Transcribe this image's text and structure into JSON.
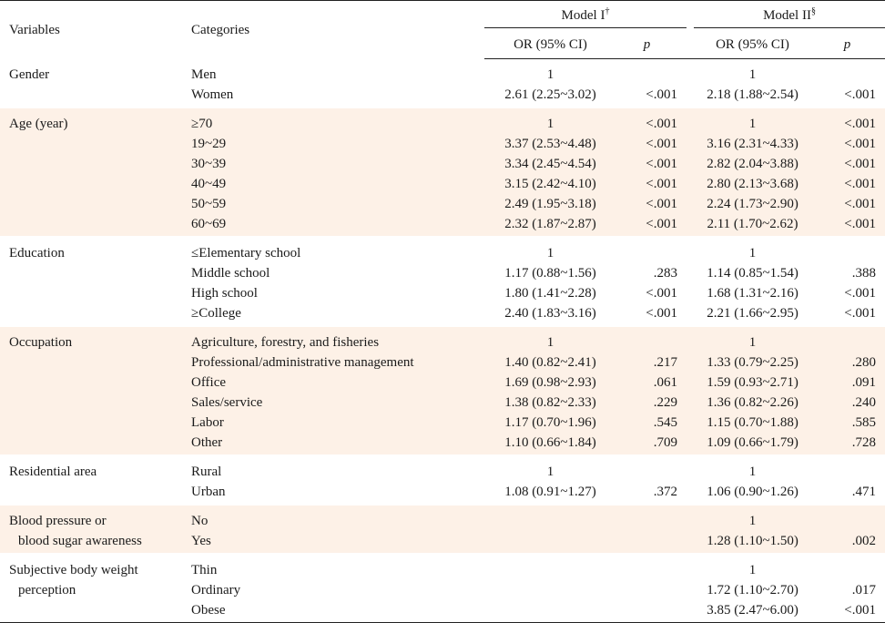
{
  "header": {
    "variables": "Variables",
    "categories": "Categories",
    "model1": "Model I",
    "model1_mark": "†",
    "model2": "Model II",
    "model2_mark": "§",
    "or_ci": "OR (95% CI)",
    "p": "p"
  },
  "groups": [
    {
      "variable_lines": [
        "Gender"
      ],
      "shaded": false,
      "rows": [
        {
          "category": "Men",
          "or1": "1",
          "p1": "",
          "or2": "1",
          "p2": ""
        },
        {
          "category": "Women",
          "or1": "2.61 (2.25~3.02)",
          "p1": "<.001",
          "or2": "2.18 (1.88~2.54)",
          "p2": "<.001"
        }
      ]
    },
    {
      "variable_lines": [
        "Age (year)"
      ],
      "shaded": true,
      "rows": [
        {
          "category": "≥70",
          "or1": "1",
          "p1": "<.001",
          "or2": "1",
          "p2": "<.001"
        },
        {
          "category": "19~29",
          "or1": "3.37 (2.53~4.48)",
          "p1": "<.001",
          "or2": "3.16 (2.31~4.33)",
          "p2": "<.001"
        },
        {
          "category": "30~39",
          "or1": "3.34 (2.45~4.54)",
          "p1": "<.001",
          "or2": "2.82 (2.04~3.88)",
          "p2": "<.001"
        },
        {
          "category": "40~49",
          "or1": "3.15 (2.42~4.10)",
          "p1": "<.001",
          "or2": "2.80 (2.13~3.68)",
          "p2": "<.001"
        },
        {
          "category": "50~59",
          "or1": "2.49 (1.95~3.18)",
          "p1": "<.001",
          "or2": "2.24 (1.73~2.90)",
          "p2": "<.001"
        },
        {
          "category": "60~69",
          "or1": "2.32 (1.87~2.87)",
          "p1": "<.001",
          "or2": "2.11 (1.70~2.62)",
          "p2": "<.001"
        }
      ]
    },
    {
      "variable_lines": [
        "Education"
      ],
      "shaded": false,
      "rows": [
        {
          "category": "≤Elementary school",
          "or1": "1",
          "p1": "",
          "or2": "1",
          "p2": ""
        },
        {
          "category": "Middle school",
          "or1": "1.17 (0.88~1.56)",
          "p1": ".283",
          "or2": "1.14 (0.85~1.54)",
          "p2": ".388"
        },
        {
          "category": "High school",
          "or1": "1.80 (1.41~2.28)",
          "p1": "<.001",
          "or2": "1.68 (1.31~2.16)",
          "p2": "<.001"
        },
        {
          "category": "≥College",
          "or1": "2.40 (1.83~3.16)",
          "p1": "<.001",
          "or2": "2.21 (1.66~2.95)",
          "p2": "<.001"
        }
      ]
    },
    {
      "variable_lines": [
        "Occupation"
      ],
      "shaded": true,
      "rows": [
        {
          "category": "Agriculture, forestry, and fisheries",
          "or1": "1",
          "p1": "",
          "or2": "1",
          "p2": ""
        },
        {
          "category": "Professional/administrative management",
          "or1": "1.40 (0.82~2.41)",
          "p1": ".217",
          "or2": "1.33 (0.79~2.25)",
          "p2": ".280"
        },
        {
          "category": "Office",
          "or1": "1.69 (0.98~2.93)",
          "p1": ".061",
          "or2": "1.59 (0.93~2.71)",
          "p2": ".091"
        },
        {
          "category": "Sales/service",
          "or1": "1.38 (0.82~2.33)",
          "p1": ".229",
          "or2": "1.36 (0.82~2.26)",
          "p2": ".240"
        },
        {
          "category": "Labor",
          "or1": "1.17 (0.70~1.96)",
          "p1": ".545",
          "or2": "1.15 (0.70~1.88)",
          "p2": ".585"
        },
        {
          "category": "Other",
          "or1": "1.10 (0.66~1.84)",
          "p1": ".709",
          "or2": "1.09 (0.66~1.79)",
          "p2": ".728"
        }
      ]
    },
    {
      "variable_lines": [
        "Residential area"
      ],
      "shaded": false,
      "rows": [
        {
          "category": "Rural",
          "or1": "1",
          "p1": "",
          "or2": "1",
          "p2": ""
        },
        {
          "category": "Urban",
          "or1": "1.08 (0.91~1.27)",
          "p1": ".372",
          "or2": "1.06 (0.90~1.26)",
          "p2": ".471"
        }
      ]
    },
    {
      "variable_lines": [
        "Blood pressure or",
        "blood sugar awareness"
      ],
      "shaded": true,
      "rows": [
        {
          "category": "No",
          "or1": "",
          "p1": "",
          "or2": "1",
          "p2": ""
        },
        {
          "category": "Yes",
          "or1": "",
          "p1": "",
          "or2": "1.28 (1.10~1.50)",
          "p2": ".002"
        }
      ]
    },
    {
      "variable_lines": [
        "Subjective body weight",
        "perception"
      ],
      "shaded": false,
      "rows": [
        {
          "category": "Thin",
          "or1": "",
          "p1": "",
          "or2": "1",
          "p2": ""
        },
        {
          "category": "Ordinary",
          "or1": "",
          "p1": "",
          "or2": "1.72 (1.10~2.70)",
          "p2": ".017"
        },
        {
          "category": "Obese",
          "or1": "",
          "p1": "",
          "or2": "3.85 (2.47~6.00)",
          "p2": "<.001"
        }
      ]
    }
  ]
}
